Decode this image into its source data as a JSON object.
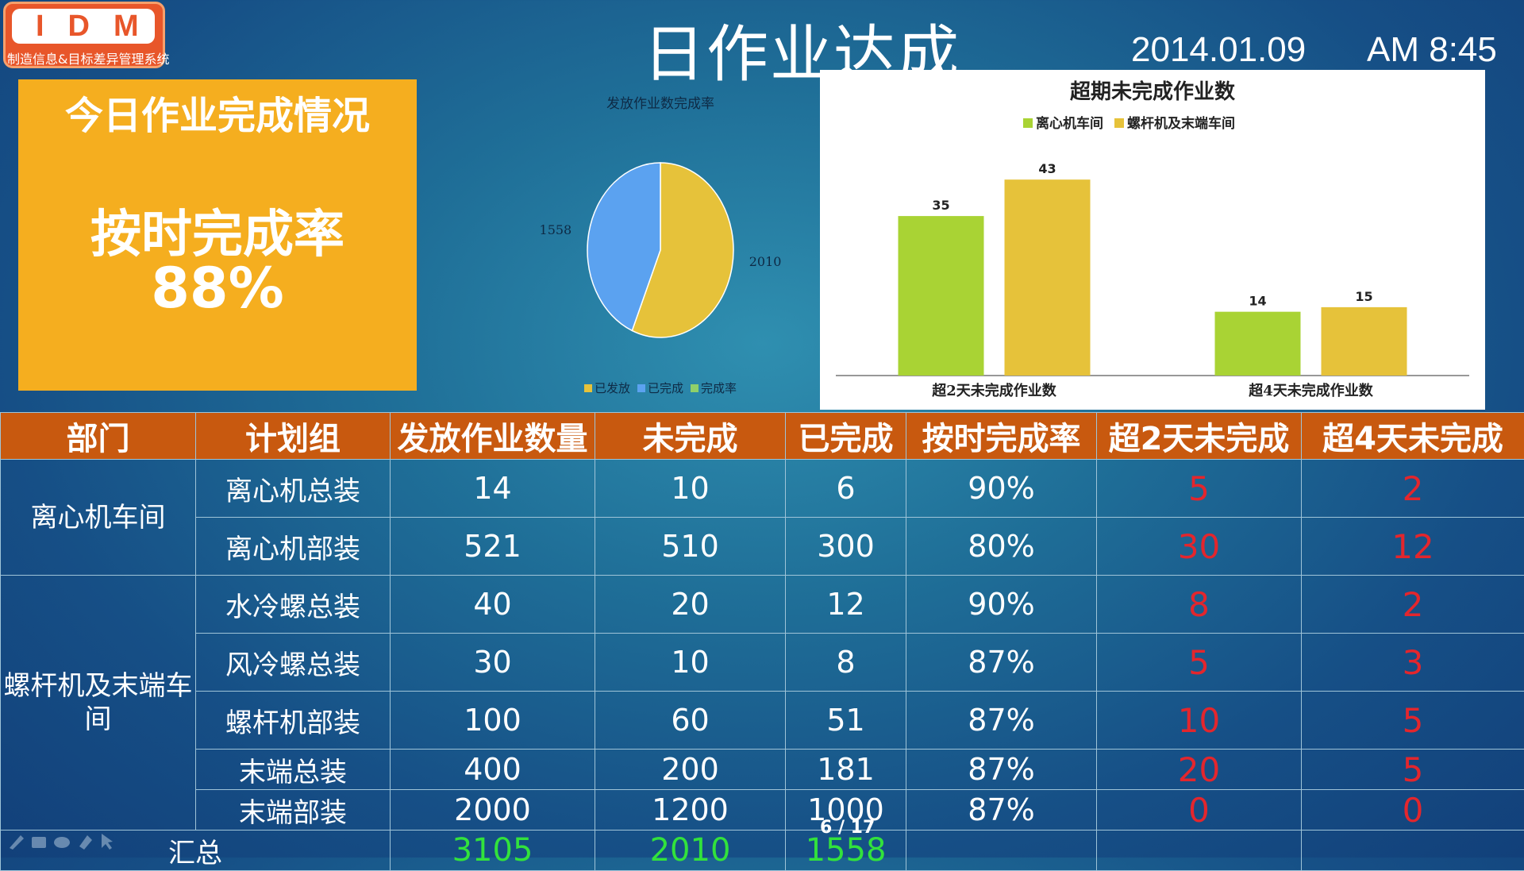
{
  "logo": {
    "letters": "IDM",
    "subtitle": "制造信息&目标差异管理系统"
  },
  "header": {
    "title": "日作业达成",
    "date": "2014.01.09",
    "time": "AM 8:45"
  },
  "kpi": {
    "heading": "今日作业完成情况",
    "label": "按时完成率",
    "value": "88%"
  },
  "colors": {
    "orange": "#f5ae1f",
    "header": "#c8590f",
    "green": "#a9d334",
    "yellow": "#e6c23a",
    "blue": "#5ba2f0",
    "red": "#e3262d"
  },
  "chart_data": [
    {
      "type": "pie",
      "title": "发放作业数完成率",
      "slices": [
        {
          "name": "已发放",
          "value": 2010,
          "color": "#e6c23a"
        },
        {
          "name": "已完成",
          "value": 1558,
          "color": "#5ba2f0"
        }
      ],
      "legend": [
        "已发放",
        "已完成",
        "完成率"
      ],
      "legend_colors": [
        "#e6c23a",
        "#5ba2f0",
        "#8fd06a"
      ],
      "legend_position": "bottom"
    },
    {
      "type": "bar",
      "title": "超期未完成作业数",
      "categories": [
        "超2天未完成作业数",
        "超4天未完成作业数"
      ],
      "series": [
        {
          "name": "离心机车间",
          "values": [
            35,
            14
          ],
          "color": "#a9d334"
        },
        {
          "name": "螺杆机及末端车间",
          "values": [
            43,
            15
          ],
          "color": "#e6c23a"
        }
      ],
      "ylim": [
        0,
        50
      ],
      "legend_position": "top"
    }
  ],
  "table": {
    "headers": [
      "部门",
      "计划组",
      "发放作业数量",
      "未完成",
      "已完成",
      "按时完成率",
      "超2天未完成",
      "超4天未完成"
    ],
    "depts": [
      "离心机车间",
      "螺杆机及末端车间"
    ],
    "rows": [
      {
        "group": "离心机总装",
        "issued": "14",
        "open": "10",
        "done": "6",
        "rate": "90%",
        "over2": "5",
        "over4": "2"
      },
      {
        "group": "离心机部装",
        "issued": "521",
        "open": "510",
        "done": "300",
        "rate": "80%",
        "over2": "30",
        "over4": "12"
      },
      {
        "group": "水冷螺总装",
        "issued": "40",
        "open": "20",
        "done": "12",
        "rate": "90%",
        "over2": "8",
        "over4": "2"
      },
      {
        "group": "风冷螺总装",
        "issued": "30",
        "open": "10",
        "done": "8",
        "rate": "87%",
        "over2": "5",
        "over4": "3"
      },
      {
        "group": "螺杆机部装",
        "issued": "100",
        "open": "60",
        "done": "51",
        "rate": "87%",
        "over2": "10",
        "over4": "5"
      },
      {
        "group": "末端总装",
        "issued": "400",
        "open": "200",
        "done": "181",
        "rate": "87%",
        "over2": "20",
        "over4": "5"
      },
      {
        "group": "末端部装",
        "issued": "2000",
        "open": "1200",
        "done": "1000",
        "rate": "87%",
        "over2": "0",
        "over4": "0"
      }
    ],
    "total": {
      "label": "汇总",
      "issued": "3105",
      "open": "2010",
      "done": "1558"
    }
  },
  "slide": {
    "page": "6 / 17"
  }
}
